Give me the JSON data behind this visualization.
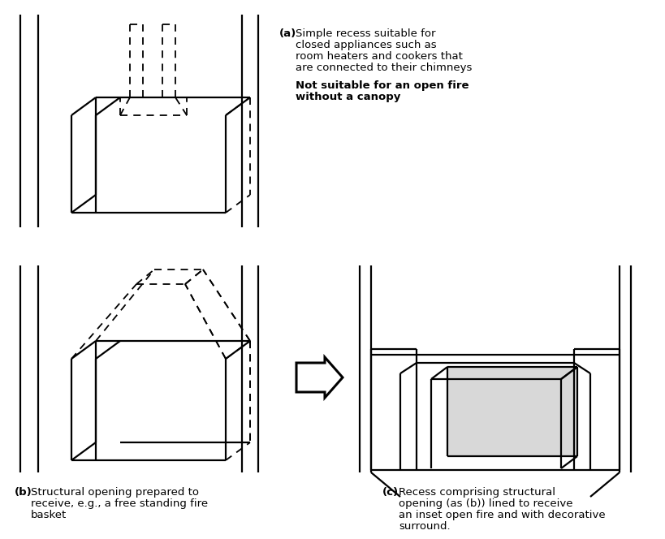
{
  "bg": "#ffffff",
  "lc": "#000000",
  "label_a": "(a)",
  "text_a": [
    "Simple recess suitable for",
    "closed appliances such as",
    "room heaters and cookers that",
    "are connected to their chimneys"
  ],
  "text_a2": [
    "Not suitable for an open fire",
    "without a canopy"
  ],
  "label_b": "(b)",
  "text_b": [
    "Structural opening prepared to",
    "receive, e.g., a free standing fire",
    "basket"
  ],
  "label_c": "(c)",
  "text_c": [
    "Recess comprising structural",
    "opening (as (b)) lined to receive",
    "an inset open fire and with decorative",
    "surround."
  ]
}
